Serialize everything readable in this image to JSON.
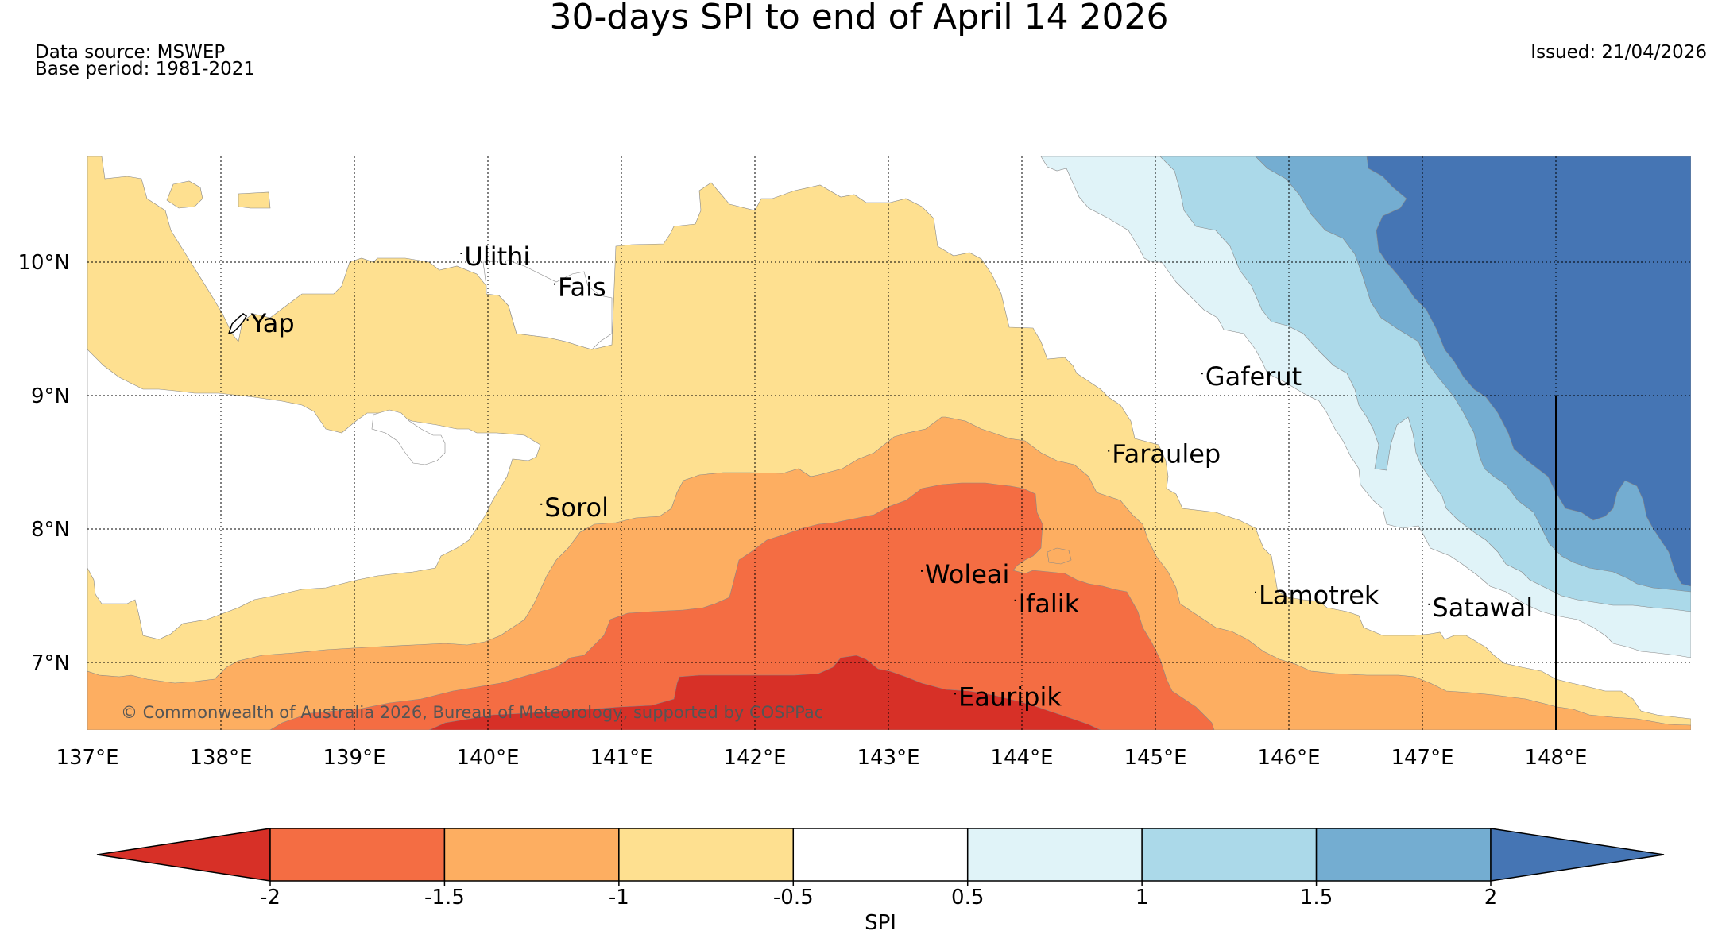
{
  "header": {
    "title": "30-days SPI to end of April 14 2026",
    "data_source": "Data source: MSWEP",
    "base_period": "Base period: 1981-2021",
    "issued": "Issued: 21/04/2026"
  },
  "map": {
    "copyright": "© Commonwealth of Australia 2026, Bureau of Meteorology, supported by COSPPac",
    "lon_ticks": [
      "137°E",
      "138°E",
      "139°E",
      "140°E",
      "141°E",
      "142°E",
      "143°E",
      "144°E",
      "145°E",
      "146°E",
      "147°E",
      "148°E"
    ],
    "lat_ticks": [
      "10°N",
      "9°N",
      "8°N",
      "7°N"
    ],
    "lon_range": [
      137,
      149
    ],
    "lat_range": [
      6.5,
      10.8
    ],
    "islands": [
      {
        "name": "Ulithi",
        "lon": 139.8,
        "lat": 10.0
      },
      {
        "name": "Fais",
        "lon": 140.5,
        "lat": 9.77
      },
      {
        "name": "Yap",
        "lon": 138.2,
        "lat": 9.5
      },
      {
        "name": "Gaferut",
        "lon": 145.35,
        "lat": 9.1
      },
      {
        "name": "Faraulep",
        "lon": 144.65,
        "lat": 8.52
      },
      {
        "name": "Sorol",
        "lon": 140.4,
        "lat": 8.12
      },
      {
        "name": "Woleai",
        "lon": 143.25,
        "lat": 7.62
      },
      {
        "name": "Ifalik",
        "lon": 143.95,
        "lat": 7.4
      },
      {
        "name": "Lamotrek",
        "lon": 145.75,
        "lat": 7.46
      },
      {
        "name": "Satawal",
        "lon": 147.05,
        "lat": 7.37
      },
      {
        "name": "Eauripik",
        "lon": 143.5,
        "lat": 6.7
      }
    ]
  },
  "legend": {
    "label": "SPI",
    "boundaries": [
      "-2",
      "-1.5",
      "-1",
      "-0.5",
      "0.5",
      "1",
      "1.5",
      "2"
    ],
    "colors": [
      "#d73027",
      "#f46d43",
      "#fdae61",
      "#fee090",
      "#ffffff",
      "#e0f3f8",
      "#abd9e9",
      "#74add1",
      "#4575b4"
    ]
  }
}
